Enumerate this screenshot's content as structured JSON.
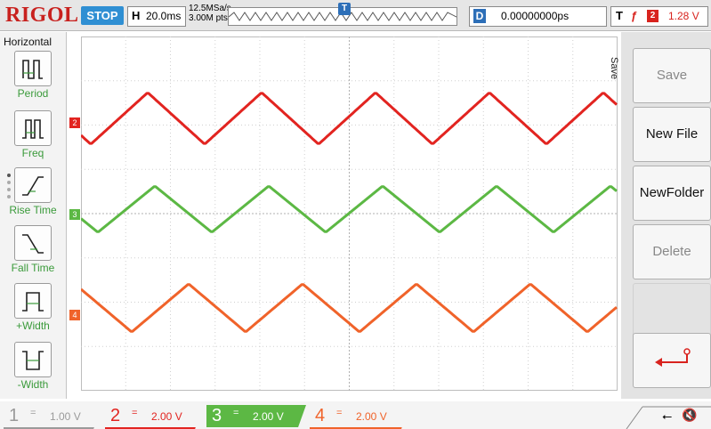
{
  "header": {
    "logo": "RIGOL",
    "run_status": "STOP",
    "horizontal_key": "H",
    "timebase": "20.0ms",
    "sample_rate": "12.5MSa/s",
    "memory_depth": "3.00M pts",
    "trigger_marker": "T",
    "delay_key": "D",
    "delay_value": "0.00000000ps",
    "trigger_key": "T",
    "trigger_slope": "ƒ",
    "trigger_source": "2",
    "trigger_level": "1.28 V"
  },
  "left_menu": {
    "title": "Horizontal",
    "items": [
      {
        "label": "Period",
        "icon": "period-icon"
      },
      {
        "label": "Freq",
        "icon": "frequency-icon"
      },
      {
        "label": "Rise Time",
        "icon": "rise-time-icon"
      },
      {
        "label": "Fall Time",
        "icon": "fall-time-icon"
      },
      {
        "label": "+Width",
        "icon": "positive-width-icon"
      },
      {
        "label": "-Width",
        "icon": "negative-width-icon"
      }
    ]
  },
  "right_menu": {
    "title": "Save",
    "buttons": [
      {
        "label": "Save",
        "enabled": false
      },
      {
        "label": "New File",
        "enabled": true
      },
      {
        "label": "NewFolder",
        "enabled": true
      },
      {
        "label": "Delete",
        "enabled": false
      }
    ],
    "back_icon": "return-arrow-icon"
  },
  "channels": [
    {
      "number": "1",
      "coupling": "=",
      "scale": "1.00 V",
      "color": "#9a9a9a",
      "enabled": false
    },
    {
      "number": "2",
      "coupling": "=",
      "scale": "2.00 V",
      "color": "#e22420",
      "enabled": false
    },
    {
      "number": "3",
      "coupling": "=",
      "scale": "2.00 V",
      "color": "#5cb844",
      "enabled": true
    },
    {
      "number": "4",
      "coupling": "=",
      "scale": "2.00 V",
      "color": "#f0632a",
      "enabled": false
    }
  ],
  "trace_markers": [
    "2",
    "3",
    "4"
  ],
  "status_icons": [
    "usb-icon",
    "mute-icon"
  ],
  "colors": {
    "ch2": "#e22420",
    "ch3": "#5cb844",
    "ch4": "#f0632a",
    "accent": "#2d6fb8",
    "brand": "#c8211e"
  }
}
